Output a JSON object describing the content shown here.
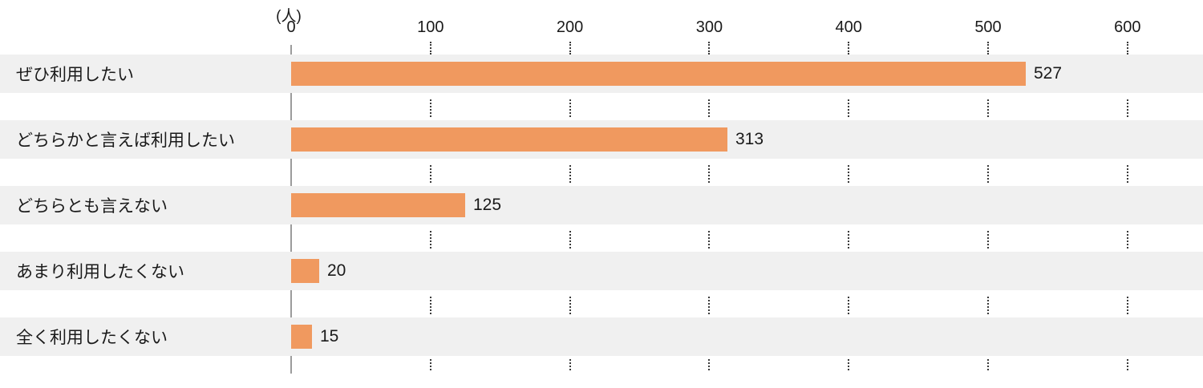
{
  "chart_data": {
    "type": "bar",
    "orientation": "horizontal",
    "title": "",
    "unit_label": "(人)",
    "categories": [
      "ぜひ利用したい",
      "どちらかと言えば利用したい",
      "どちらとも言えない",
      "あまり利用したくない",
      "全く利用したくない"
    ],
    "values": [
      527,
      313,
      125,
      20,
      15
    ],
    "value_labels": [
      "527",
      "313",
      "125",
      "20",
      "15"
    ],
    "xlabel": "",
    "ylabel": "",
    "x_ticks": [
      0,
      100,
      200,
      300,
      400,
      500,
      600
    ],
    "xlim": [
      0,
      650
    ],
    "grid": "dotted-vertical-segments-between-rows",
    "legend": "none",
    "bar_color": "#F0995F",
    "row_band_color": "#F0F0F0",
    "axis_line_color": "#9C9C9C",
    "gridline_color": "#3A3A3A",
    "text_color": "#1A1A1A"
  }
}
